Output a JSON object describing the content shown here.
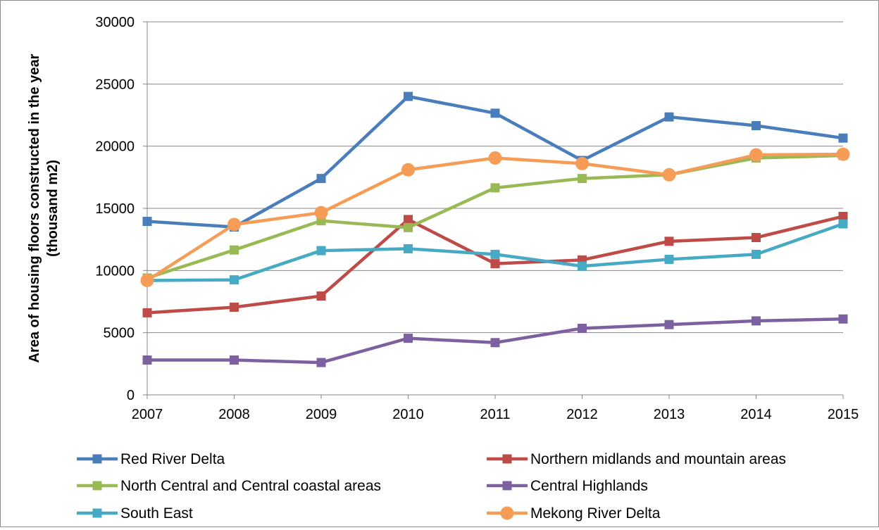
{
  "chart_data": {
    "type": "line",
    "title": "",
    "xlabel": "",
    "ylabel_lines": [
      "Area of housing floors constructed in the year",
      "(thousand m2)"
    ],
    "x": [
      2007,
      2008,
      2009,
      2010,
      2011,
      2012,
      2013,
      2014,
      2015
    ],
    "ylim": [
      0,
      30000
    ],
    "yticks": [
      0,
      5000,
      10000,
      15000,
      20000,
      25000,
      30000
    ],
    "grid": true,
    "legend_position": "bottom",
    "series": [
      {
        "name": "Red River Delta",
        "color": "#4a7ebb",
        "marker": "square",
        "values": [
          13950,
          13500,
          17400,
          24000,
          22650,
          18850,
          22350,
          21650,
          20650
        ]
      },
      {
        "name": "Northern midlands and mountain areas",
        "color": "#be4b48",
        "marker": "square",
        "values": [
          6600,
          7050,
          7950,
          14100,
          10550,
          10850,
          12350,
          12650,
          14350
        ]
      },
      {
        "name": "North Central and Central coastal areas",
        "color": "#98b954",
        "marker": "square",
        "values": [
          9400,
          11650,
          14000,
          13450,
          16650,
          17400,
          17700,
          19050,
          19250
        ]
      },
      {
        "name": "Central Highlands",
        "color": "#7d60a0",
        "marker": "square",
        "values": [
          2800,
          2800,
          2600,
          4550,
          4200,
          5350,
          5650,
          5950,
          6100
        ]
      },
      {
        "name": "South East",
        "color": "#46aac5",
        "marker": "square",
        "values": [
          9200,
          9250,
          11600,
          11750,
          11300,
          10350,
          10900,
          11300,
          13750
        ]
      },
      {
        "name": "Mekong River Delta",
        "color": "#f59d56",
        "marker": "circle",
        "values": [
          9200,
          13700,
          14650,
          18100,
          19050,
          18600,
          17700,
          19300,
          19350
        ]
      }
    ]
  }
}
